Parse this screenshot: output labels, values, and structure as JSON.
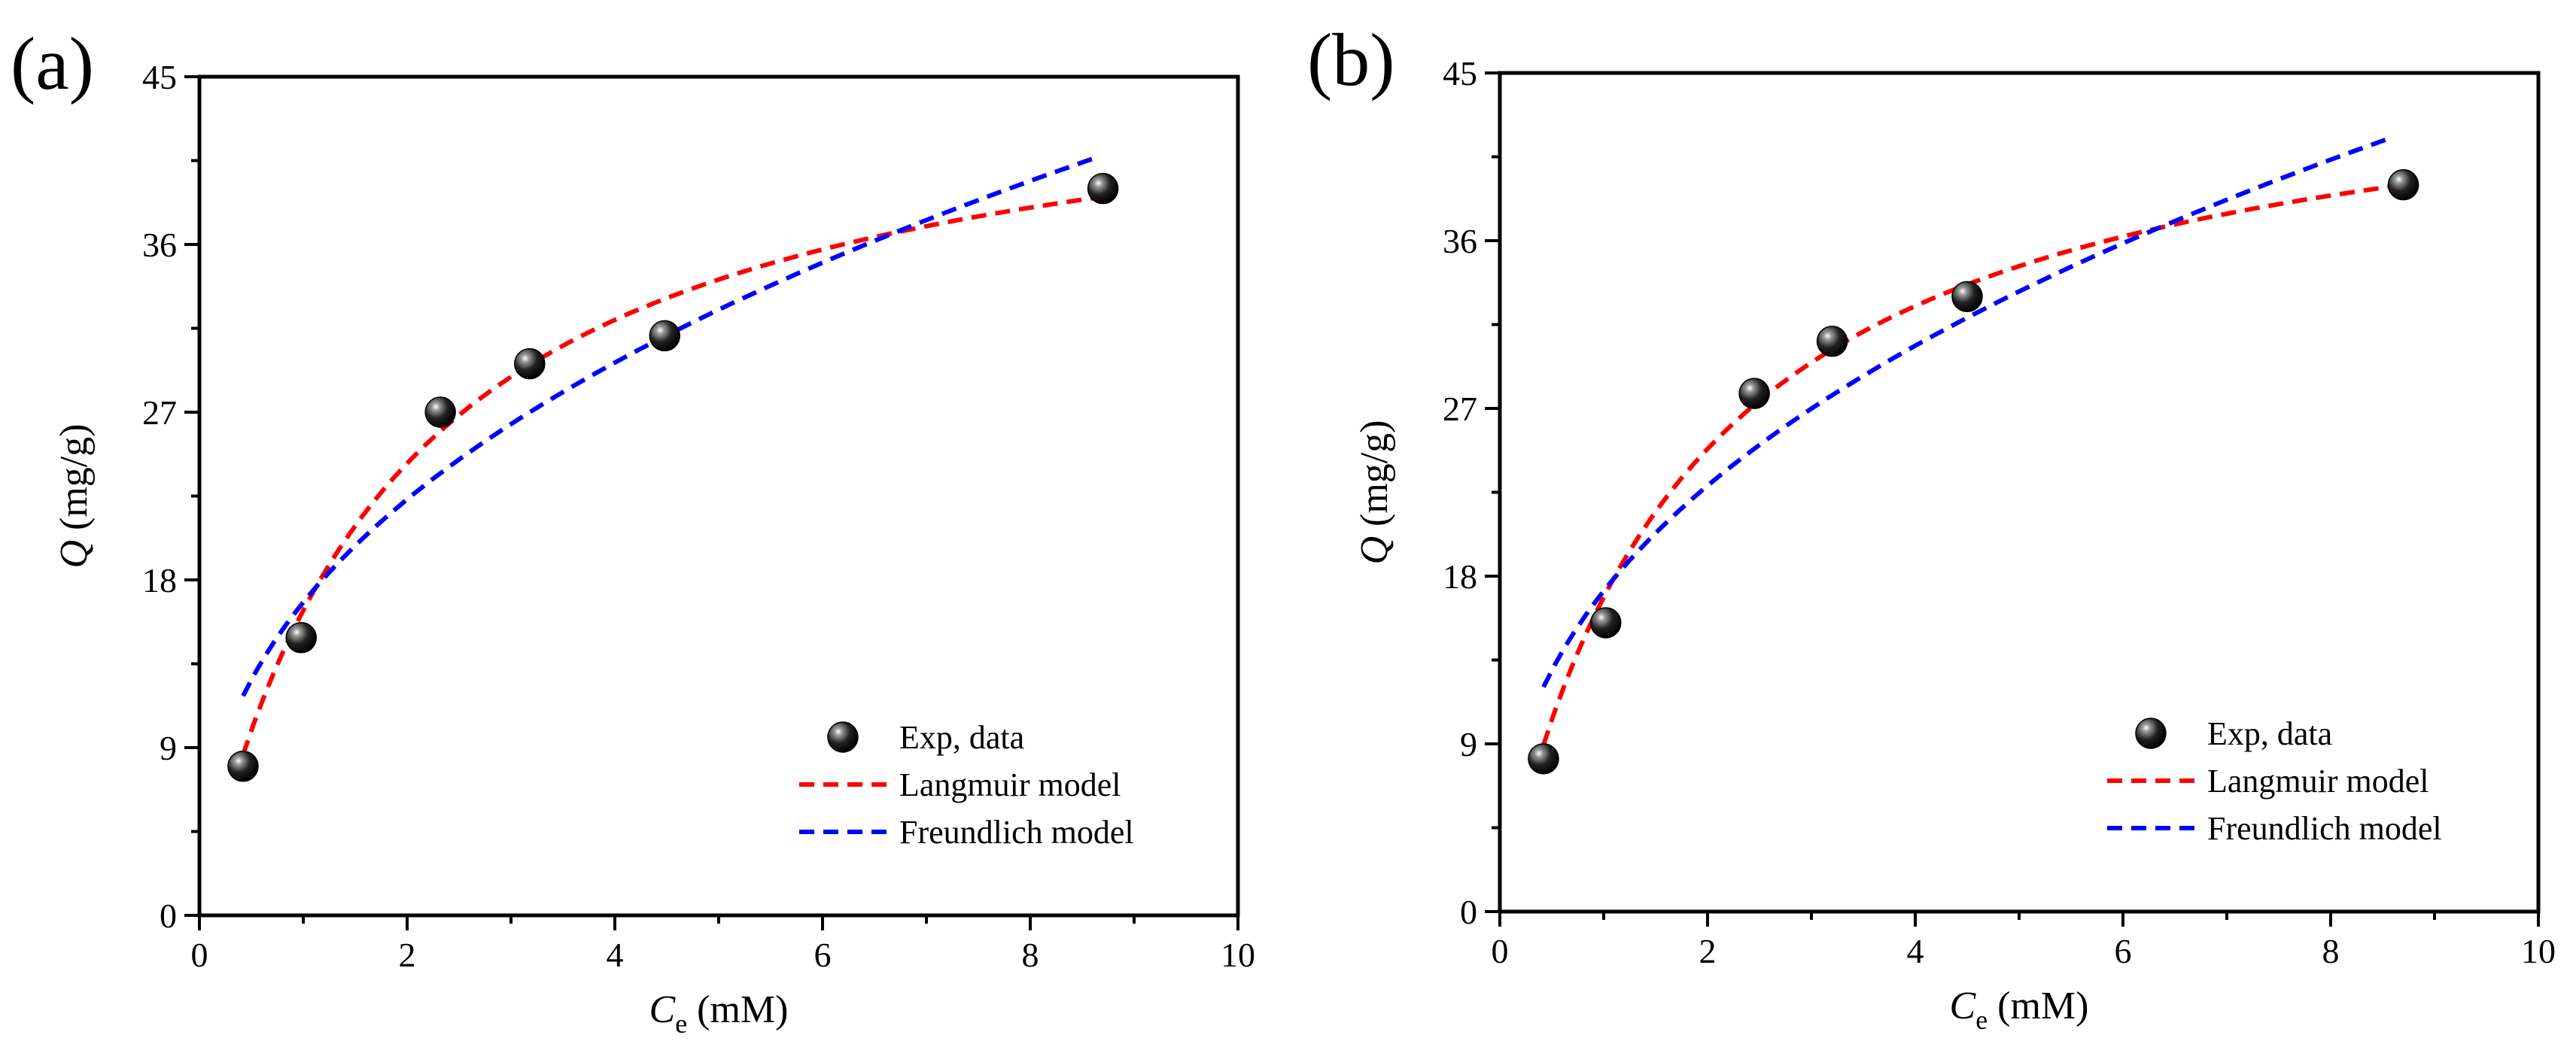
{
  "chart_data": [
    {
      "panel_label": "(a)",
      "type": "scatter",
      "xlabel_main": "C",
      "xlabel_sub": "e",
      "xlabel_unit": " (mM)",
      "ylabel_main": "Q",
      "ylabel_unit": " (mg/g)",
      "xlim": [
        0,
        10
      ],
      "ylim": [
        0,
        45
      ],
      "xticks": [
        "0",
        "2",
        "4",
        "6",
        "8",
        "10"
      ],
      "yticks": [
        "0",
        "9",
        "18",
        "27",
        "36",
        "45"
      ],
      "legend_position": "bottom-right",
      "series": [
        {
          "name": "Exp, data",
          "kind": "points",
          "x": [
            0.42,
            0.98,
            2.32,
            3.18,
            4.48,
            8.7
          ],
          "y": [
            8.0,
            14.9,
            27.0,
            29.6,
            31.1,
            39.0
          ]
        },
        {
          "name": "Langmuir model",
          "kind": "dashed-line",
          "color": "#ff0000",
          "qmax": 46.8,
          "kl": 0.538,
          "xrange": [
            0.42,
            8.7
          ]
        },
        {
          "name": "Freundlich model",
          "kind": "dashed-line",
          "color": "#0000ff",
          "kf": 16.8,
          "inv_n": 0.41,
          "xrange": [
            0.42,
            8.6
          ]
        }
      ]
    },
    {
      "panel_label": "(b)",
      "type": "scatter",
      "xlabel_main": "C",
      "xlabel_sub": "e",
      "xlabel_unit": " (mM)",
      "ylabel_main": "Q",
      "ylabel_unit": " (mg/g)",
      "xlim": [
        0,
        10
      ],
      "ylim": [
        0,
        45
      ],
      "xticks": [
        "0",
        "2",
        "4",
        "6",
        "8",
        "10"
      ],
      "yticks": [
        "0",
        "9",
        "18",
        "27",
        "36",
        "45"
      ],
      "legend_position": "bottom-right",
      "series": [
        {
          "name": "Exp, data",
          "kind": "points",
          "x": [
            0.42,
            1.02,
            2.45,
            3.2,
            4.5,
            8.7
          ],
          "y": [
            8.2,
            15.5,
            27.8,
            30.6,
            33.0,
            39.0
          ]
        },
        {
          "name": "Langmuir model",
          "kind": "dashed-line",
          "color": "#ff0000",
          "qmax": 47.0,
          "kl": 0.56,
          "xrange": [
            0.42,
            8.7
          ]
        },
        {
          "name": "Freundlich model",
          "kind": "dashed-line",
          "color": "#0000ff",
          "kf": 17.2,
          "inv_n": 0.41,
          "xrange": [
            0.42,
            8.6
          ]
        }
      ]
    }
  ]
}
